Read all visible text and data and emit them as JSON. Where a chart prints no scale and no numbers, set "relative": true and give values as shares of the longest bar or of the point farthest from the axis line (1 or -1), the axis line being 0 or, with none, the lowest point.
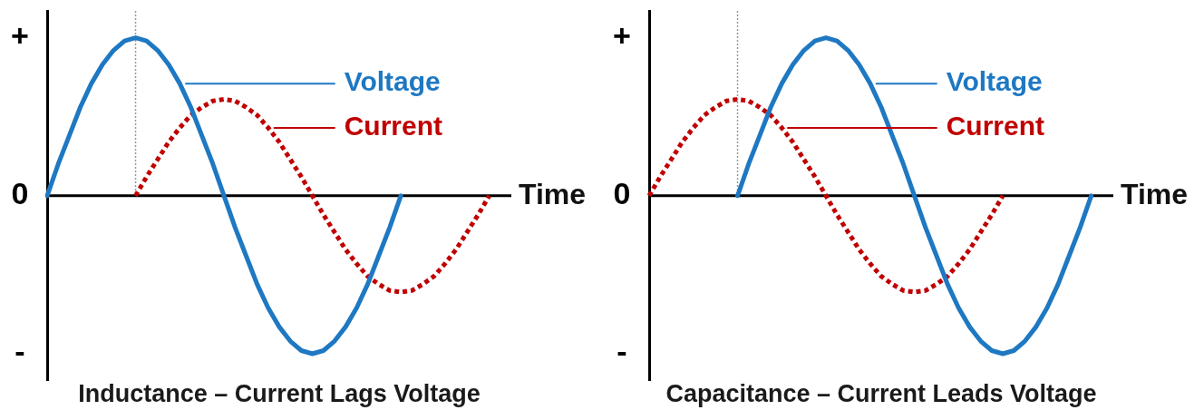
{
  "chart_data": [
    {
      "type": "line",
      "title": "Inductance – Current Lags Voltage",
      "xlabel": "Time",
      "relative": true,
      "annotations": [
        "+",
        "0",
        "-"
      ],
      "grid": false,
      "legend": "top right",
      "marker": "none",
      "categories": [
        null,
        null,
        null,
        null,
        null,
        null,
        null,
        null,
        null,
        null,
        null,
        null,
        null,
        null,
        null,
        null,
        null,
        null,
        null,
        null,
        null,
        null,
        null,
        null,
        null,
        null,
        null,
        null,
        null,
        null,
        null,
        null,
        null,
        null,
        null,
        null,
        null,
        null,
        null,
        null,
        null,
        null,
        null
      ],
      "series": [
        {
          "name": "Voltage",
          "color": "#1e78c2",
          "line_style": "solid",
          "values": [
            0,
            0.2,
            0.38,
            0.56,
            0.71,
            0.83,
            0.92,
            0.98,
            1,
            0.98,
            0.92,
            0.83,
            0.71,
            0.56,
            0.38,
            0.2,
            0,
            -0.2,
            -0.38,
            -0.56,
            -0.71,
            -0.83,
            -0.92,
            -0.98,
            -1,
            -0.98,
            -0.92,
            -0.83,
            -0.71,
            -0.56,
            -0.38,
            -0.2,
            0,
            null,
            null,
            null,
            null,
            null,
            null,
            null,
            null,
            null,
            null
          ]
        },
        {
          "name": "Current",
          "color": "#c00000",
          "line_style": "dotted",
          "values": [
            null,
            null,
            null,
            null,
            null,
            null,
            null,
            null,
            0,
            0.12,
            0.23,
            0.34,
            0.43,
            0.51,
            0.56,
            0.6,
            0.61,
            0.6,
            0.56,
            0.51,
            0.43,
            0.34,
            0.23,
            0.12,
            0,
            -0.12,
            -0.23,
            -0.34,
            -0.43,
            -0.51,
            -0.56,
            -0.6,
            -0.61,
            -0.6,
            -0.56,
            -0.51,
            -0.43,
            -0.34,
            -0.23,
            -0.12,
            0,
            null,
            null
          ]
        }
      ]
    },
    {
      "type": "line",
      "title": "Capacitance – Current Leads Voltage",
      "xlabel": "Time",
      "relative": true,
      "annotations": [
        "+",
        "0",
        "-"
      ],
      "grid": false,
      "legend": "top right",
      "marker": "none",
      "categories": [
        null,
        null,
        null,
        null,
        null,
        null,
        null,
        null,
        null,
        null,
        null,
        null,
        null,
        null,
        null,
        null,
        null,
        null,
        null,
        null,
        null,
        null,
        null,
        null,
        null,
        null,
        null,
        null,
        null,
        null,
        null,
        null,
        null,
        null,
        null,
        null,
        null,
        null,
        null,
        null,
        null,
        null,
        null
      ],
      "series": [
        {
          "name": "Voltage",
          "color": "#1e78c2",
          "line_style": "solid",
          "values": [
            null,
            null,
            null,
            null,
            null,
            null,
            null,
            null,
            0,
            0.2,
            0.38,
            0.56,
            0.71,
            0.83,
            0.92,
            0.98,
            1,
            0.98,
            0.92,
            0.83,
            0.71,
            0.56,
            0.38,
            0.2,
            0,
            -0.2,
            -0.38,
            -0.56,
            -0.71,
            -0.83,
            -0.92,
            -0.98,
            -1,
            -0.98,
            -0.92,
            -0.83,
            -0.71,
            -0.56,
            -0.38,
            -0.2,
            0,
            null,
            null
          ]
        },
        {
          "name": "Current",
          "color": "#c00000",
          "line_style": "dotted",
          "values": [
            0,
            0.12,
            0.23,
            0.34,
            0.43,
            0.51,
            0.56,
            0.6,
            0.61,
            0.6,
            0.56,
            0.51,
            0.43,
            0.34,
            0.23,
            0.12,
            0,
            -0.12,
            -0.23,
            -0.34,
            -0.43,
            -0.51,
            -0.56,
            -0.6,
            -0.61,
            -0.6,
            -0.56,
            -0.51,
            -0.43,
            -0.34,
            -0.23,
            -0.12,
            0,
            null,
            null,
            null,
            null,
            null,
            null,
            null,
            null,
            null,
            null
          ]
        }
      ]
    }
  ]
}
